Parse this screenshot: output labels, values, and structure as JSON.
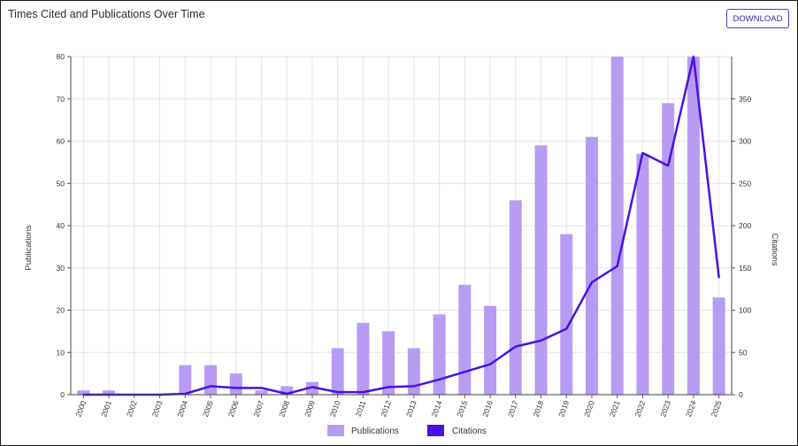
{
  "title": "Times Cited and Publications Over Time",
  "download_label": "DOWNLOAD",
  "colors": {
    "publications_bar": "#b89cf3",
    "citations_line": "#4a10e6",
    "grid": "#e6e6e6"
  },
  "chart_data": {
    "type": "bar",
    "categories": [
      "2000",
      "2001",
      "2002",
      "2003",
      "2004",
      "2005",
      "2006",
      "2007",
      "2008",
      "2009",
      "2010",
      "2011",
      "2012",
      "2013",
      "2014",
      "2015",
      "2016",
      "2017",
      "2018",
      "2019",
      "2020",
      "2021",
      "2022",
      "2023",
      "2024",
      "2025"
    ],
    "series": [
      {
        "name": "Publications",
        "type": "bar",
        "axis": "left",
        "values": [
          1,
          1,
          0,
          0,
          7,
          7,
          5,
          1,
          2,
          3,
          11,
          17,
          15,
          11,
          19,
          26,
          21,
          46,
          59,
          38,
          61,
          80,
          57,
          69,
          80,
          23
        ]
      },
      {
        "name": "Citations",
        "type": "line",
        "axis": "right",
        "values": [
          0,
          0,
          0,
          0,
          1,
          10,
          8,
          8,
          1,
          9,
          3,
          3,
          9,
          10,
          18,
          27,
          36,
          57,
          64,
          78,
          133,
          152,
          286,
          271,
          400,
          139
        ]
      }
    ],
    "ylabel": "Publications",
    "y2label": "Citations",
    "ylim": [
      0,
      80
    ],
    "y2lim": [
      0,
      400
    ],
    "yticks": [
      0,
      10,
      20,
      30,
      40,
      50,
      60,
      70,
      80
    ],
    "y2ticks": [
      0,
      50,
      100,
      150,
      200,
      250,
      300,
      350
    ],
    "grid": true,
    "legend_position": "bottom-center"
  }
}
